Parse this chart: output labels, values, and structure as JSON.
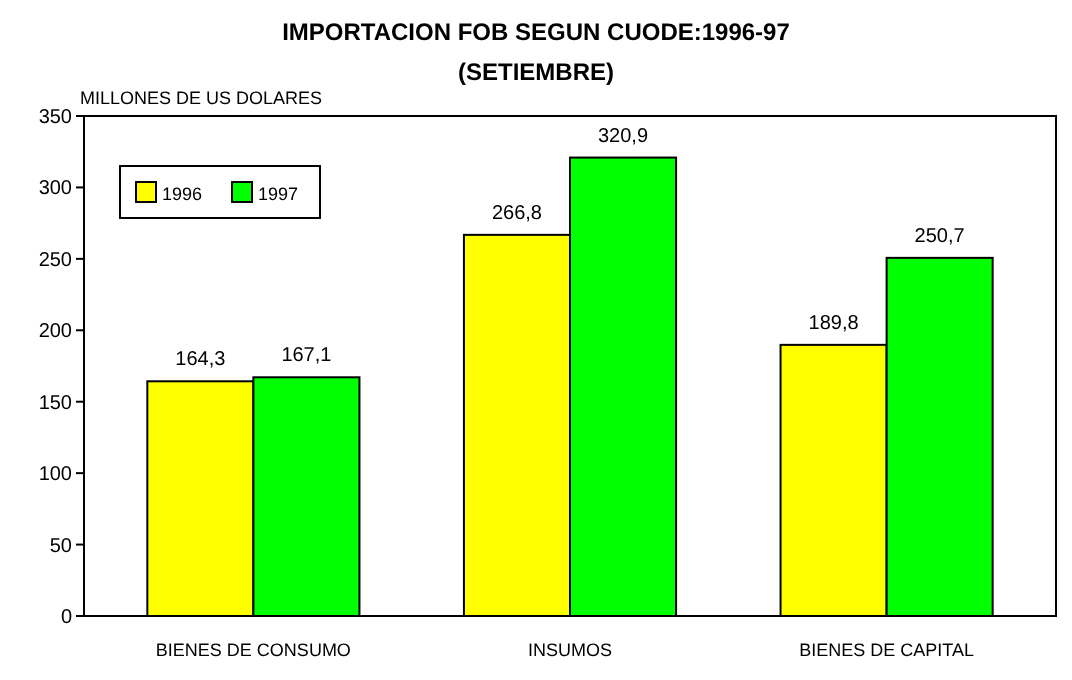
{
  "chart_data": {
    "type": "bar",
    "title": "IMPORTACION FOB SEGUN CUODE:1996-97",
    "subtitle": "(SETIEMBRE)",
    "ylabel": "MILLONES DE US DOLARES",
    "categories": [
      "BIENES DE CONSUMO",
      "INSUMOS",
      "BIENES DE CAPITAL"
    ],
    "series": [
      {
        "name": "1996",
        "color": "#ffff00",
        "values": [
          164.3,
          266.8,
          189.8
        ],
        "value_labels": [
          "164,3",
          "266,8",
          "189,8"
        ]
      },
      {
        "name": "1997",
        "color": "#00ff00",
        "values": [
          167.1,
          320.9,
          250.7
        ],
        "value_labels": [
          "167,1",
          "320,9",
          "250,7"
        ]
      }
    ],
    "ylim": [
      0,
      350
    ],
    "yticks": [
      0,
      50,
      100,
      150,
      200,
      250,
      300,
      350
    ],
    "legend": "top left",
    "grid": false
  }
}
